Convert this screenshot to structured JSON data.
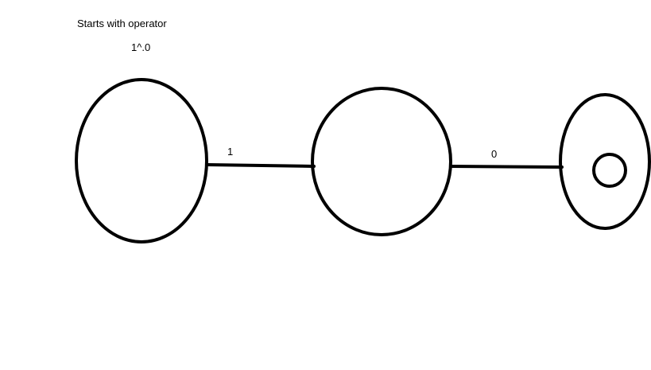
{
  "diagram": {
    "title": "Starts with operator",
    "expression": "1^.0",
    "edges": [
      {
        "from": "q0",
        "to": "q1",
        "label": "1"
      },
      {
        "from": "q1",
        "to": "q2",
        "label": "0"
      }
    ],
    "states": [
      {
        "id": "q0",
        "accepting": false
      },
      {
        "id": "q1",
        "accepting": false
      },
      {
        "id": "q2",
        "accepting": true
      }
    ],
    "colors": {
      "stroke": "#000000",
      "background": "#ffffff"
    }
  }
}
